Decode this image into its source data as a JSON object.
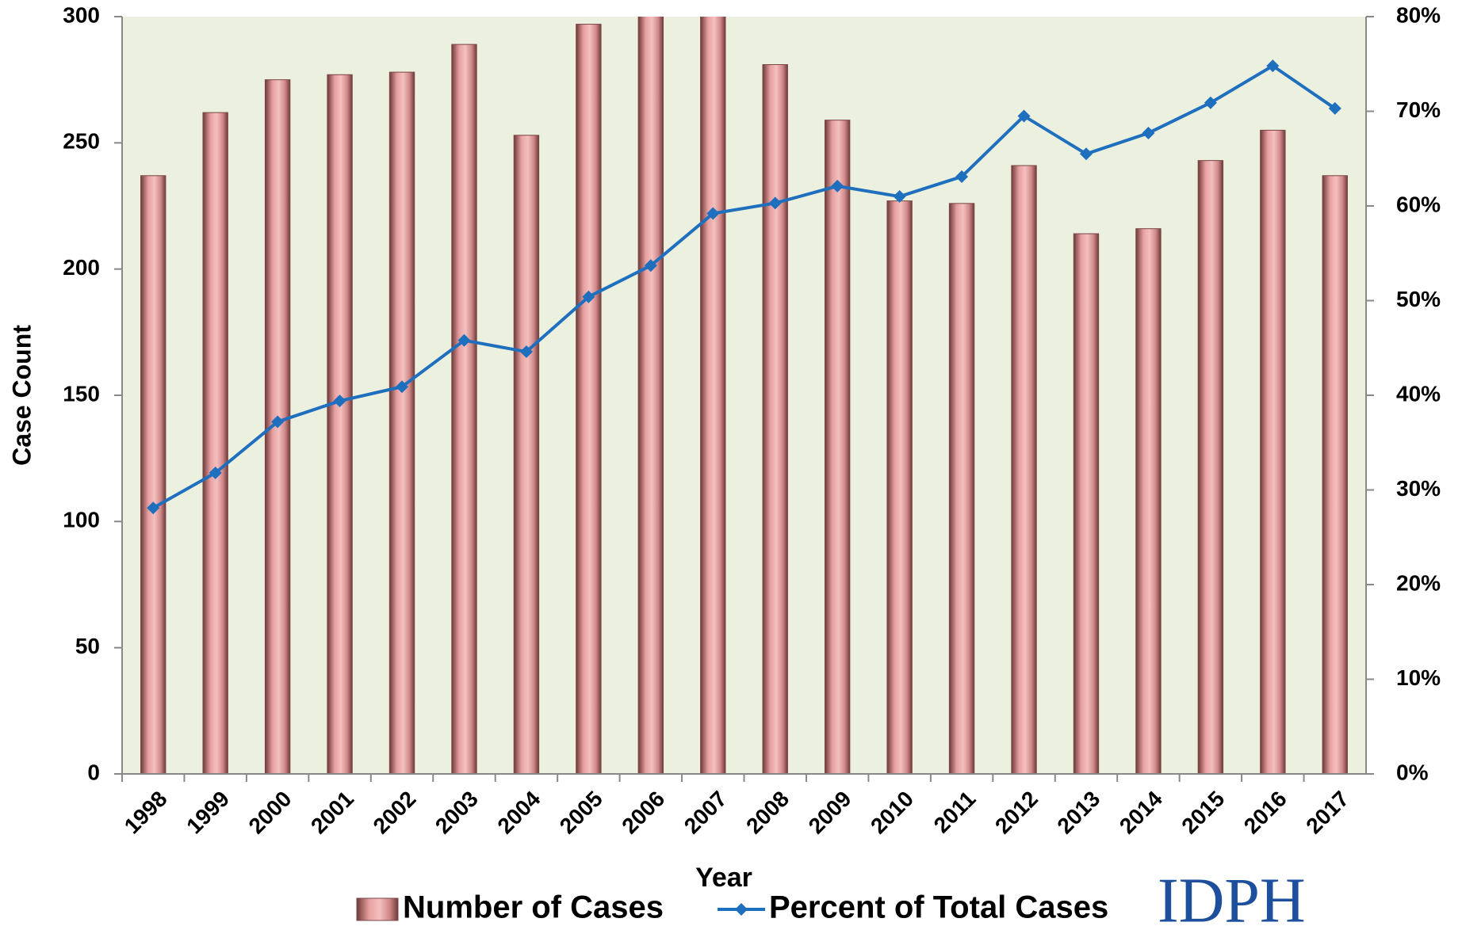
{
  "chart_data": {
    "type": "bar-line",
    "x_label": "Year",
    "y_label": "Case Count",
    "categories": [
      "1998",
      "1999",
      "2000",
      "2001",
      "2002",
      "2003",
      "2004",
      "2005",
      "2006",
      "2007",
      "2008",
      "2009",
      "2010",
      "2011",
      "2012",
      "2013",
      "2014",
      "2015",
      "2016",
      "2017"
    ],
    "series": [
      {
        "name": "Number of Cases",
        "type": "bar",
        "color": "#e8a0a0",
        "values": [
          237,
          262,
          275,
          277,
          278,
          289,
          253,
          297,
          306,
          310,
          281,
          259,
          227,
          226,
          241,
          214,
          216,
          243,
          255,
          237
        ]
      },
      {
        "name": "Percent of Total Cases",
        "type": "line",
        "axis": "y2",
        "color": "#1f6fbf",
        "values": [
          28.1,
          31.8,
          37.2,
          39.4,
          40.9,
          45.8,
          44.6,
          50.4,
          53.7,
          59.2,
          60.3,
          62.1,
          61.0,
          63.1,
          69.5,
          65.5,
          67.7,
          70.9,
          74.8,
          70.3
        ]
      }
    ],
    "ylim": [
      0,
      300
    ],
    "yticks": [
      0,
      50,
      100,
      150,
      200,
      250,
      300
    ],
    "y2lim": [
      0,
      80
    ],
    "y2ticks": [
      {
        "value": 0,
        "label": "0%"
      },
      {
        "value": 10,
        "label": "10%"
      },
      {
        "value": 20,
        "label": "20%"
      },
      {
        "value": 30,
        "label": "30%"
      },
      {
        "value": 40,
        "label": "40%"
      },
      {
        "value": 50,
        "label": "50%"
      },
      {
        "value": 60,
        "label": "60%"
      },
      {
        "value": 70,
        "label": "70%"
      },
      {
        "value": 80,
        "label": "80%"
      }
    ],
    "plot_background": "#ebf0df",
    "logo": "IDPH"
  }
}
